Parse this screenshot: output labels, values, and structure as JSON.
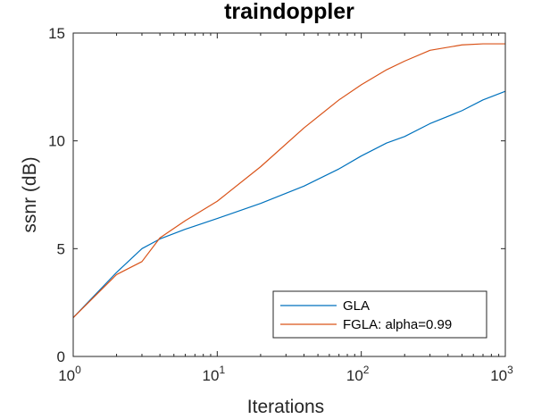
{
  "chart_data": {
    "type": "line",
    "title": "traindoppler",
    "xlabel": "Iterations",
    "ylabel": "ssnr (dB)",
    "xscale": "log",
    "xlim": [
      1,
      1000
    ],
    "ylim": [
      0,
      15
    ],
    "x_ticks": [
      {
        "value": 1,
        "base": "10",
        "exp": "0"
      },
      {
        "value": 10,
        "base": "10",
        "exp": "1"
      },
      {
        "value": 100,
        "base": "10",
        "exp": "2"
      },
      {
        "value": 1000,
        "base": "10",
        "exp": "3"
      }
    ],
    "y_ticks": [
      {
        "value": 0,
        "label": "0"
      },
      {
        "value": 5,
        "label": "5"
      },
      {
        "value": 10,
        "label": "10"
      },
      {
        "value": 15,
        "label": "15"
      }
    ],
    "grid": false,
    "legend_position": "bottom-right",
    "series": [
      {
        "name": "GLA",
        "color": "#0072BD",
        "x": [
          1,
          2,
          3,
          4,
          6,
          10,
          20,
          40,
          70,
          100,
          150,
          200,
          300,
          500,
          700,
          1000
        ],
        "y": [
          1.8,
          3.9,
          5.0,
          5.45,
          5.9,
          6.4,
          7.1,
          7.9,
          8.7,
          9.3,
          9.9,
          10.2,
          10.8,
          11.4,
          11.9,
          12.3
        ]
      },
      {
        "name": "FGLA: alpha=0.99",
        "color": "#D95319",
        "x": [
          1,
          2,
          3,
          4,
          6,
          10,
          20,
          40,
          70,
          100,
          150,
          200,
          300,
          500,
          700,
          1000
        ],
        "y": [
          1.8,
          3.8,
          4.4,
          5.5,
          6.3,
          7.2,
          8.8,
          10.6,
          11.9,
          12.6,
          13.3,
          13.7,
          14.2,
          14.45,
          14.5,
          14.5
        ]
      }
    ]
  }
}
